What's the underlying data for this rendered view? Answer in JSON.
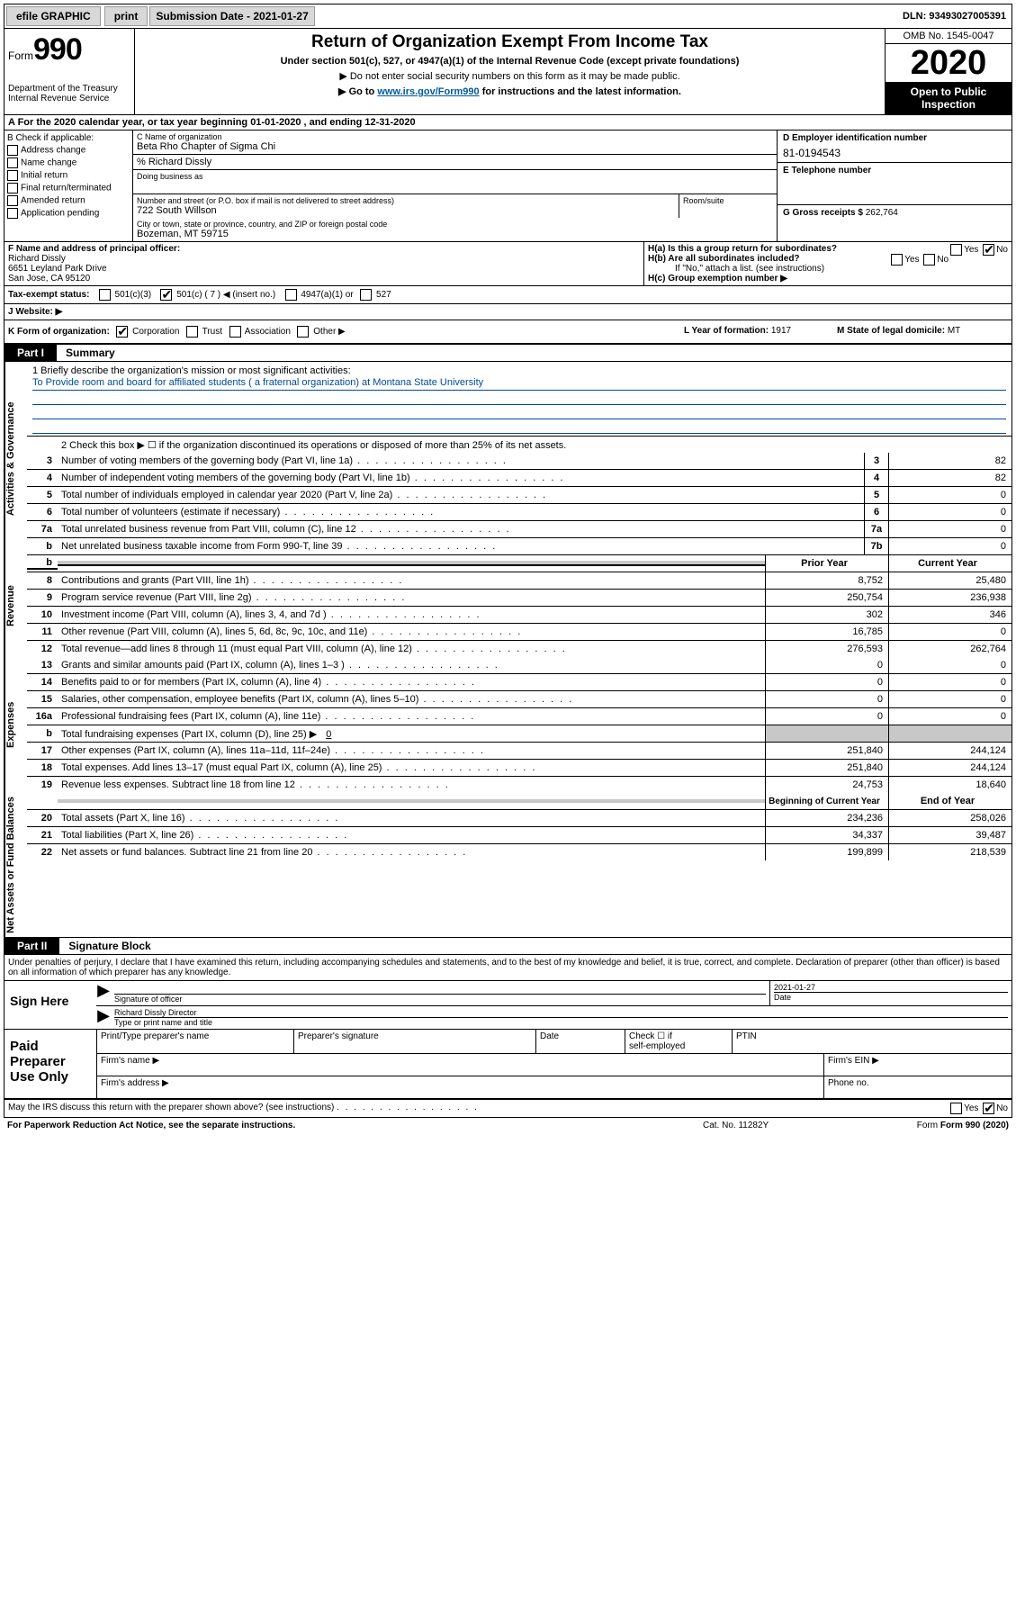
{
  "topbar": {
    "efile": "efile GRAPHIC",
    "print": "print",
    "sub_label": "Submission Date - 2021-01-27",
    "dln": "DLN: 93493027005391"
  },
  "header": {
    "form_prefix": "Form",
    "form_num": "990",
    "dept": "Department of the Treasury Internal Revenue Service",
    "title": "Return of Organization Exempt From Income Tax",
    "subtitle": "Under section 501(c), 527, or 4947(a)(1) of the Internal Revenue Code (except private foundations)",
    "note1": "▶ Do not enter social security numbers on this form as it may be made public.",
    "note2_pre": "▶ Go to ",
    "note2_link": "www.irs.gov/Form990",
    "note2_post": " for instructions and the latest information.",
    "omb": "OMB No. 1545-0047",
    "year": "2020",
    "open": "Open to Public Inspection"
  },
  "lineA": "A For the 2020 calendar year, or tax year beginning 01-01-2020   , and ending 12-31-2020",
  "boxB": {
    "label": "B Check if applicable:",
    "opts": [
      "Address change",
      "Name change",
      "Initial return",
      "Final return/terminated",
      "Amended return",
      "Application pending"
    ]
  },
  "boxC": {
    "name_lbl": "C Name of organization",
    "name": "Beta Rho Chapter of Sigma Chi",
    "care_lbl": "% Richard Dissly",
    "dba_lbl": "Doing business as",
    "addr_lbl": "Number and street (or P.O. box if mail is not delivered to street address)",
    "addr": "722 South Willson",
    "room_lbl": "Room/suite",
    "city_lbl": "City or town, state or province, country, and ZIP or foreign postal code",
    "city": "Bozeman, MT  59715"
  },
  "boxD": {
    "lbl": "D Employer identification number",
    "val": "81-0194543"
  },
  "boxE": {
    "lbl": "E Telephone number",
    "val": ""
  },
  "boxG": {
    "lbl": "G Gross receipts $",
    "val": "262,764"
  },
  "boxF": {
    "lbl": "F Name and address of principal officer:",
    "name": "Richard Dissly",
    "addr1": "6651 Leyland Park Drive",
    "addr2": "San Jose, CA  95120"
  },
  "boxH": {
    "a": "H(a)  Is this a group return for subordinates?",
    "b": "H(b)  Are all subordinates included?",
    "bnote": "If \"No,\" attach a list. (see instructions)",
    "c": "H(c)  Group exemption number ▶"
  },
  "boxI": {
    "lbl": "Tax-exempt status:",
    "o1": "501(c)(3)",
    "o2": "501(c) ( 7 ) ◀ (insert no.)",
    "o3": "4947(a)(1) or",
    "o4": "527"
  },
  "boxJ": {
    "lbl": "J   Website: ▶"
  },
  "boxK": {
    "lbl": "K Form of organization:",
    "o1": "Corporation",
    "o2": "Trust",
    "o3": "Association",
    "o4": "Other ▶"
  },
  "boxL": {
    "lbl": "L Year of formation:",
    "val": "1917"
  },
  "boxM": {
    "lbl": "M State of legal domicile:",
    "val": "MT"
  },
  "partI": {
    "tag": "Part I",
    "title": "Summary"
  },
  "mission": {
    "lbl": "1  Briefly describe the organization's mission or most significant activities:",
    "text": "To Provide room and board for affiliated students ( a fraternal organization) at Montana State University"
  },
  "line2": "2   Check this box ▶ ☐  if the organization discontinued its operations or disposed of more than 25% of its net assets.",
  "sections": {
    "gov": "Activities & Governance",
    "rev": "Revenue",
    "exp": "Expenses",
    "net": "Net Assets or Fund Balances"
  },
  "rows_gov": [
    {
      "n": "3",
      "d": "Number of voting members of the governing body (Part VI, line 1a)",
      "box": "3",
      "v": "82"
    },
    {
      "n": "4",
      "d": "Number of independent voting members of the governing body (Part VI, line 1b)",
      "box": "4",
      "v": "82"
    },
    {
      "n": "5",
      "d": "Total number of individuals employed in calendar year 2020 (Part V, line 2a)",
      "box": "5",
      "v": "0"
    },
    {
      "n": "6",
      "d": "Total number of volunteers (estimate if necessary)",
      "box": "6",
      "v": "0"
    },
    {
      "n": "7a",
      "d": "Total unrelated business revenue from Part VIII, column (C), line 12",
      "box": "7a",
      "v": "0"
    },
    {
      "n": "b",
      "d": "Net unrelated business taxable income from Form 990-T, line 39",
      "box": "7b",
      "v": "0"
    }
  ],
  "colheads": {
    "prior": "Prior Year",
    "current": "Current Year",
    "boy": "Beginning of Current Year",
    "eoy": "End of Year"
  },
  "rows_rev": [
    {
      "n": "8",
      "d": "Contributions and grants (Part VIII, line 1h)",
      "p": "8,752",
      "c": "25,480"
    },
    {
      "n": "9",
      "d": "Program service revenue (Part VIII, line 2g)",
      "p": "250,754",
      "c": "236,938"
    },
    {
      "n": "10",
      "d": "Investment income (Part VIII, column (A), lines 3, 4, and 7d )",
      "p": "302",
      "c": "346"
    },
    {
      "n": "11",
      "d": "Other revenue (Part VIII, column (A), lines 5, 6d, 8c, 9c, 10c, and 11e)",
      "p": "16,785",
      "c": "0"
    },
    {
      "n": "12",
      "d": "Total revenue—add lines 8 through 11 (must equal Part VIII, column (A), line 12)",
      "p": "276,593",
      "c": "262,764"
    }
  ],
  "rows_exp": [
    {
      "n": "13",
      "d": "Grants and similar amounts paid (Part IX, column (A), lines 1–3 )",
      "p": "0",
      "c": "0"
    },
    {
      "n": "14",
      "d": "Benefits paid to or for members (Part IX, column (A), line 4)",
      "p": "0",
      "c": "0"
    },
    {
      "n": "15",
      "d": "Salaries, other compensation, employee benefits (Part IX, column (A), lines 5–10)",
      "p": "0",
      "c": "0"
    },
    {
      "n": "16a",
      "d": "Professional fundraising fees (Part IX, column (A), line 11e)",
      "p": "0",
      "c": "0"
    }
  ],
  "row_16b": {
    "n": "b",
    "d": "Total fundraising expenses (Part IX, column (D), line 25) ▶",
    "v": "0"
  },
  "rows_exp2": [
    {
      "n": "17",
      "d": "Other expenses (Part IX, column (A), lines 11a–11d, 11f–24e)",
      "p": "251,840",
      "c": "244,124"
    },
    {
      "n": "18",
      "d": "Total expenses. Add lines 13–17 (must equal Part IX, column (A), line 25)",
      "p": "251,840",
      "c": "244,124"
    },
    {
      "n": "19",
      "d": "Revenue less expenses. Subtract line 18 from line 12",
      "p": "24,753",
      "c": "18,640"
    }
  ],
  "rows_net": [
    {
      "n": "20",
      "d": "Total assets (Part X, line 16)",
      "p": "234,236",
      "c": "258,026"
    },
    {
      "n": "21",
      "d": "Total liabilities (Part X, line 26)",
      "p": "34,337",
      "c": "39,487"
    },
    {
      "n": "22",
      "d": "Net assets or fund balances. Subtract line 21 from line 20",
      "p": "199,899",
      "c": "218,539"
    }
  ],
  "partII": {
    "tag": "Part II",
    "title": "Signature Block"
  },
  "decl": "Under penalties of perjury, I declare that I have examined this return, including accompanying schedules and statements, and to the best of my knowledge and belief, it is true, correct, and complete. Declaration of preparer (other than officer) is based on all information of which preparer has any knowledge.",
  "sign": {
    "here": "Sign Here",
    "sig_lbl": "Signature of officer",
    "date": "2021-01-27",
    "date_lbl": "Date",
    "name": "Richard Dissly  Director",
    "name_lbl": "Type or print name and title"
  },
  "paid": {
    "label": "Paid Preparer Use Only",
    "c1": "Print/Type preparer's name",
    "c2": "Preparer's signature",
    "c3": "Date",
    "c4a": "Check ☐ if",
    "c4b": "self-employed",
    "c5": "PTIN",
    "r2a": "Firm's name   ▶",
    "r2b": "Firm's EIN ▶",
    "r3a": "Firm's address ▶",
    "r3b": "Phone no."
  },
  "discuss": "May the IRS discuss this return with the preparer shown above? (see instructions)",
  "bottom": {
    "pra": "For Paperwork Reduction Act Notice, see the separate instructions.",
    "cat": "Cat. No. 11282Y",
    "form": "Form 990 (2020)"
  }
}
